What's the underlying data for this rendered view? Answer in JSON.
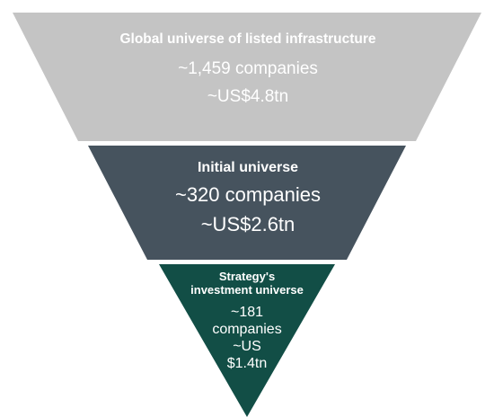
{
  "tiers": [
    {
      "title": "Global universe of listed infrastructure",
      "count": "~1,459 companies",
      "value": "~US$4.8tn",
      "color": "#c4c4c4"
    },
    {
      "title": "Initial universe",
      "count": "~320 companies",
      "value": "~US$2.6tn",
      "color": "#46535e"
    },
    {
      "title_line1": "Strategy's",
      "title_line2": "investment universe",
      "count_line1": "~181",
      "count_line2": "companies",
      "value_line1": "~US",
      "value_line2": "$1.4tn",
      "color": "#124e46"
    }
  ]
}
